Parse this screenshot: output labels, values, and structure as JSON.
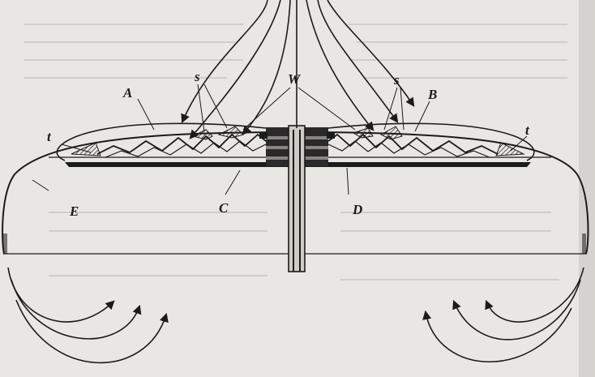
{
  "figure": {
    "labels": {
      "A": "A",
      "B": "B",
      "C": "C",
      "D": "D",
      "E": "E",
      "W": "W",
      "s_left": "s",
      "s_right": "s",
      "t_left": "t",
      "t_right": "t"
    },
    "colors": {
      "paper": "#e9e7e3",
      "ink": "#1b1b1b",
      "bleed_text": "#cfcac3"
    }
  }
}
